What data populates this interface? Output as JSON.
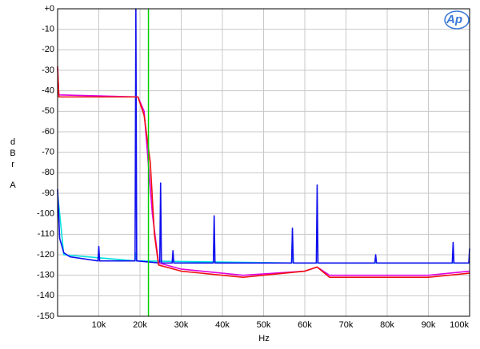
{
  "chart_data": {
    "type": "line",
    "xlabel": "Hz",
    "ylabel": [
      "dBr",
      "A"
    ],
    "logo": "Ap",
    "xlim": [
      0,
      100000
    ],
    "ylim": [
      -150,
      0
    ],
    "xticks": [
      {
        "value": 10000,
        "label": "10k"
      },
      {
        "value": 20000,
        "label": "20k"
      },
      {
        "value": 30000,
        "label": "30k"
      },
      {
        "value": 40000,
        "label": "40k"
      },
      {
        "value": 50000,
        "label": "50k"
      },
      {
        "value": 60000,
        "label": "60k"
      },
      {
        "value": 70000,
        "label": "70k"
      },
      {
        "value": 80000,
        "label": "80k"
      },
      {
        "value": 90000,
        "label": "90k"
      },
      {
        "value": 100000,
        "label": "100k"
      }
    ],
    "yticks": [
      {
        "value": 0,
        "label": "+0"
      },
      -10,
      -20,
      -30,
      -40,
      -50,
      -60,
      -70,
      -80,
      -90,
      -100,
      -110,
      -120,
      -130,
      -140,
      -150
    ],
    "grid": true,
    "marker_x": 22050,
    "marker_color": "#00d000",
    "series": [
      {
        "color": "#00e0e0",
        "x": [
          0,
          1500,
          18800,
          19000,
          19200,
          56800,
          57000,
          57200,
          100000
        ],
        "values": [
          -90,
          -120,
          -123,
          -119,
          -123,
          -124,
          -111,
          -124,
          -124
        ]
      },
      {
        "color": "#1010ee",
        "x": [
          0,
          500,
          1500,
          3000,
          9800,
          10000,
          10200,
          18800,
          19000,
          19200,
          24800,
          25000,
          25200,
          27800,
          28000,
          28200,
          37800,
          38000,
          38200,
          56800,
          57000,
          57200,
          62800,
          63000,
          63200,
          77000,
          77200,
          77400,
          95800,
          96000,
          96200,
          99800,
          100000
        ],
        "values": [
          -88,
          -112,
          -119,
          -121,
          -123,
          -116,
          -123,
          -123,
          0,
          -123,
          -124,
          -85,
          -124,
          -124,
          -118,
          -124,
          -124,
          -101,
          -124,
          -124,
          -107,
          -124,
          -124,
          -86,
          -124,
          -124,
          -120,
          -124,
          -124,
          -114,
          -124,
          -124,
          -117
        ]
      },
      {
        "color": "#e000e0",
        "x": [
          0,
          300,
          19500,
          21000,
          23000,
          24500,
          30000,
          45000,
          60000,
          63000,
          66000,
          90000,
          100000
        ],
        "values": [
          -29,
          -42,
          -43,
          -50,
          -100,
          -124,
          -127,
          -130,
          -128,
          -126,
          -130,
          -130,
          -128
        ]
      },
      {
        "color": "#f01010",
        "x": [
          0,
          300,
          19500,
          21000,
          22500,
          23500,
          24500,
          30000,
          45000,
          60000,
          63000,
          66000,
          90000,
          100000
        ],
        "values": [
          -28,
          -43,
          -43,
          -52,
          -75,
          -110,
          -125,
          -128,
          -131,
          -128,
          -126,
          -131,
          -131,
          -129
        ]
      }
    ]
  }
}
